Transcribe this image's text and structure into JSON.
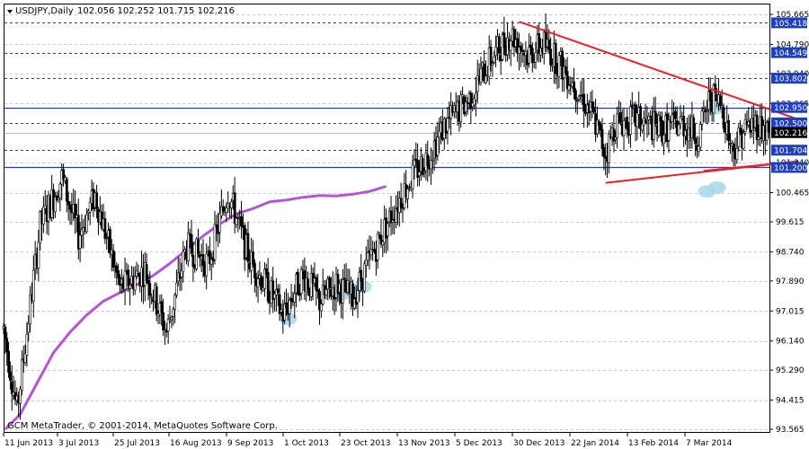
{
  "header": {
    "symbol": "USDJPY,Daily",
    "ohlc": "102.056 102.252 101.715 102.216"
  },
  "copyright": "GCM MetaTrader, © 2001-2014, MetaQuotes Software Corp.",
  "chart_data": {
    "type": "candlestick",
    "title": "USDJPY,Daily",
    "ylim": [
      93.565,
      105.665
    ],
    "y_ticks": [
      "105.665",
      "104.790",
      "103.940",
      "103.065",
      "101.340",
      "100.465",
      "99.615",
      "98.740",
      "97.890",
      "97.015",
      "96.140",
      "95.290",
      "94.415",
      "93.565"
    ],
    "x_ticks": [
      "11 Jun 2013",
      "3 Jul 2013",
      "25 Jul 2013",
      "16 Aug 2013",
      "9 Sep 2013",
      "1 Oct 2013",
      "23 Oct 2013",
      "13 Nov 2013",
      "5 Dec 2013",
      "30 Dec 2013",
      "22 Jan 2014",
      "13 Feb 2014",
      "7 Mar 2014"
    ],
    "price_lines": [
      {
        "label": "105.418",
        "value": 105.418,
        "style": "dashed",
        "highlight": true
      },
      {
        "label": "104.549",
        "value": 104.549,
        "style": "dashed",
        "highlight": true
      },
      {
        "label": "103.802",
        "value": 103.802,
        "style": "dashed",
        "highlight": true
      },
      {
        "label": "102.950",
        "value": 102.95,
        "style": "solid",
        "highlight": true
      },
      {
        "label": "102.500",
        "value": 102.5,
        "style": "dashed",
        "highlight": true
      },
      {
        "label": "102.216",
        "value": 102.216,
        "style": "current",
        "highlight": false
      },
      {
        "label": "101.704",
        "value": 101.704,
        "style": "dashed",
        "highlight": true
      },
      {
        "label": "101.200",
        "value": 101.2,
        "style": "solid",
        "highlight": true
      }
    ],
    "candle_waypoints": [
      [
        0,
        96.5
      ],
      [
        8,
        94.1
      ],
      [
        22,
        99.5
      ],
      [
        35,
        100.9
      ],
      [
        45,
        99.2
      ],
      [
        55,
        100.4
      ],
      [
        70,
        97.7
      ],
      [
        85,
        98.2
      ],
      [
        98,
        96.4
      ],
      [
        110,
        98.9
      ],
      [
        123,
        98.4
      ],
      [
        135,
        100.5
      ],
      [
        148,
        98.5
      ],
      [
        160,
        97.6
      ],
      [
        168,
        96.9
      ],
      [
        180,
        98.1
      ],
      [
        190,
        97.3
      ],
      [
        200,
        97.8
      ],
      [
        210,
        97.4
      ],
      [
        222,
        98.7
      ],
      [
        235,
        100.0
      ],
      [
        245,
        100.9
      ],
      [
        256,
        101.6
      ],
      [
        265,
        102.4
      ],
      [
        280,
        103.2
      ],
      [
        292,
        104.3
      ],
      [
        305,
        105.1
      ],
      [
        315,
        104.5
      ],
      [
        325,
        104.8
      ],
      [
        335,
        104.2
      ],
      [
        345,
        103.5
      ],
      [
        355,
        102.6
      ],
      [
        362,
        101.6
      ],
      [
        368,
        102.5
      ],
      [
        380,
        102.6
      ],
      [
        395,
        102.3
      ],
      [
        408,
        102.5
      ],
      [
        418,
        102.1
      ],
      [
        425,
        103.3
      ],
      [
        432,
        103.0
      ],
      [
        438,
        101.7
      ],
      [
        445,
        102.3
      ],
      [
        452,
        102.5
      ],
      [
        460,
        102.2
      ]
    ],
    "moving_average": {
      "name": "",
      "color": "#b455d4",
      "points": [
        [
          1,
          93.565
        ],
        [
          10,
          94.0
        ],
        [
          20,
          94.9
        ],
        [
          30,
          95.8
        ],
        [
          40,
          96.4
        ],
        [
          50,
          96.9
        ],
        [
          60,
          97.3
        ],
        [
          70,
          97.55
        ],
        [
          80,
          97.78
        ],
        [
          90,
          98.05
        ],
        [
          100,
          98.4
        ],
        [
          110,
          98.8
        ],
        [
          120,
          99.2
        ],
        [
          130,
          99.55
        ],
        [
          140,
          99.85
        ],
        [
          150,
          100.0
        ],
        [
          160,
          100.2
        ],
        [
          170,
          100.25
        ],
        [
          180,
          100.33
        ],
        [
          190,
          100.38
        ],
        [
          200,
          100.37
        ],
        [
          210,
          100.42
        ],
        [
          220,
          100.5
        ],
        [
          230,
          100.65
        ]
      ]
    },
    "trendlines": [
      {
        "color": "#e8202a",
        "from": [
          310,
          105.45
        ],
        "to": [
          478,
          102.6
        ]
      },
      {
        "color": "#e8202a",
        "from": [
          362,
          100.75
        ],
        "to": [
          478,
          101.38
        ]
      },
      {
        "color": "#e8202a",
        "from": [
          421,
          101.1
        ],
        "to": [
          478,
          101.38
        ]
      }
    ],
    "markers": [
      {
        "x": 171,
        "y": 96.78
      },
      {
        "x": 203,
        "y": 97.5
      },
      {
        "x": 216,
        "y": 97.72
      },
      {
        "x": 428,
        "y": 102.92
      },
      {
        "x": 423,
        "y": 100.5
      },
      {
        "x": 429,
        "y": 100.61
      }
    ],
    "grid": true,
    "colors": {
      "candle": "#000000",
      "highlight_label_bg": "#1f3fbf",
      "current_label_bg": "#000000",
      "marker": "#a8d8ea"
    }
  }
}
